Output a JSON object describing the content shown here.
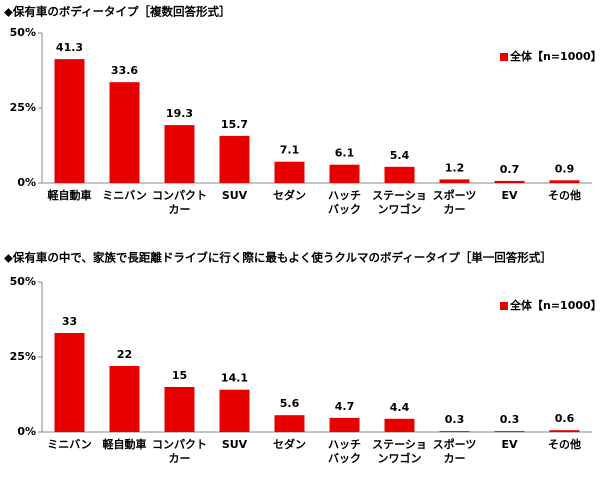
{
  "chart_data": [
    {
      "type": "bar",
      "title": "◆保有車のボディータイプ［複数回答形式］",
      "categories": [
        "軽自動車",
        "ミニバン",
        "コンパクト\nカー",
        "SUV",
        "セダン",
        "ハッチ\nバック",
        "ステーショ\nンワゴン",
        "スポーツ\nカー",
        "EV",
        "その他"
      ],
      "series": [
        {
          "name": "全体【n=1000】",
          "color": "#e60000",
          "values": [
            41.3,
            33.6,
            19.3,
            15.7,
            7.1,
            6.1,
            5.4,
            1.2,
            0.7,
            0.9
          ]
        }
      ],
      "ylim": [
        0,
        50
      ],
      "yticks": [
        {
          "value": 0,
          "label": "0%"
        },
        {
          "value": 25,
          "label": "25%"
        },
        {
          "value": 50,
          "label": "50%"
        }
      ],
      "legend": "upper right"
    },
    {
      "type": "bar",
      "title": "◆保有車の中で、家族で長距離ドライブに行く際に最もよく使うクルマのボディータイプ［単一回答形式］",
      "categories": [
        "ミニバン",
        "軽自動車",
        "コンパクト\nカー",
        "SUV",
        "セダン",
        "ハッチ\nバック",
        "ステーショ\nンワゴン",
        "スポーツ\nカー",
        "EV",
        "その他"
      ],
      "series": [
        {
          "name": "全体【n=1000】",
          "color": "#e60000",
          "values": [
            33.0,
            22.0,
            15.0,
            14.1,
            5.6,
            4.7,
            4.4,
            0.3,
            0.3,
            0.6
          ]
        }
      ],
      "ylim": [
        0,
        50
      ],
      "yticks": [
        {
          "value": 0,
          "label": "0%"
        },
        {
          "value": 25,
          "label": "25%"
        },
        {
          "value": 50,
          "label": "50%"
        }
      ],
      "legend": "upper right"
    }
  ]
}
